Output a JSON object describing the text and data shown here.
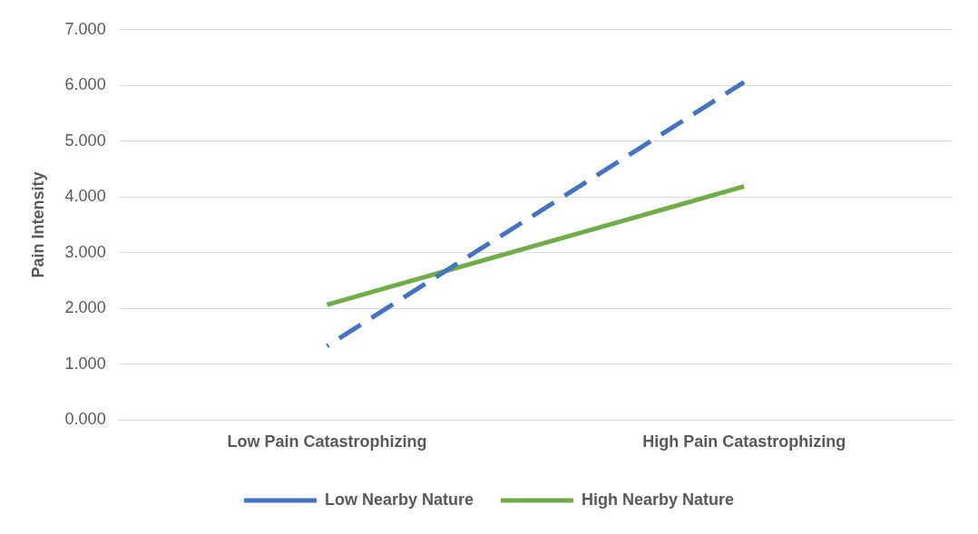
{
  "chart_data": {
    "type": "line",
    "ylabel": "Pain Intensity",
    "categories": [
      "Low Pain Catastrophizing",
      "High Pain Catastrophizing"
    ],
    "series": [
      {
        "name": "Low Nearby Nature",
        "color": "#4472c4",
        "values": [
          1.33,
          6.06
        ],
        "line_style": "dashed"
      },
      {
        "name": "High Nearby Nature",
        "color": "#70ad47",
        "values": [
          2.07,
          4.19
        ],
        "line_style": "solid"
      }
    ],
    "ylim": [
      0,
      7
    ],
    "yticks": [
      {
        "value": 0,
        "label": "0.000"
      },
      {
        "value": 1,
        "label": "1.000"
      },
      {
        "value": 2,
        "label": "2.000"
      },
      {
        "value": 3,
        "label": "3.000"
      },
      {
        "value": 4,
        "label": "4.000"
      },
      {
        "value": 5,
        "label": "5.000"
      },
      {
        "value": 6,
        "label": "6.000"
      },
      {
        "value": 7,
        "label": "7.000"
      }
    ],
    "grid": "y",
    "legend": "bottom",
    "marker": "none"
  }
}
